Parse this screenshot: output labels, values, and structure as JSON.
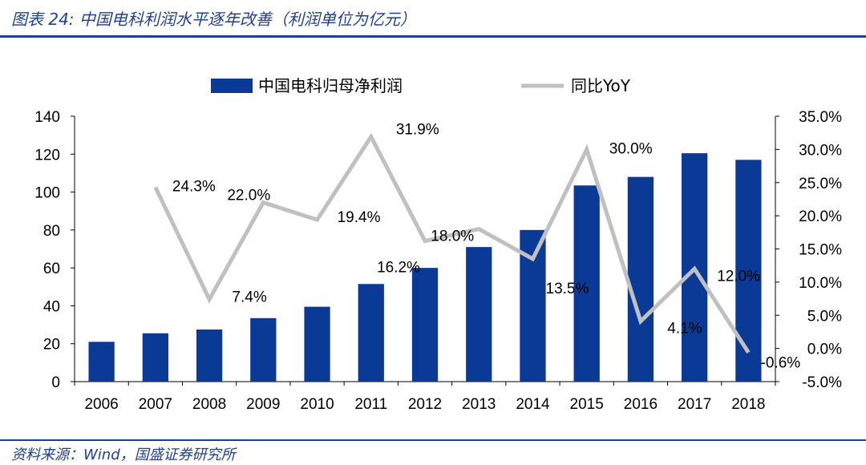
{
  "header": {
    "title": "图表 24: 中国电科利润水平逐年改善（利润单位为亿元）"
  },
  "footer": {
    "source": "资料来源：Wind，国盛证券研究所"
  },
  "colors": {
    "bar": "#0b3a96",
    "line": "#c0c0c2",
    "accent": "#1f3f8f"
  },
  "chart_data": {
    "type": "bar",
    "categories": [
      "2006",
      "2007",
      "2008",
      "2009",
      "2010",
      "2011",
      "2012",
      "2013",
      "2014",
      "2015",
      "2016",
      "2017",
      "2018"
    ],
    "series": [
      {
        "name": "中国电科归母净利润",
        "axis": "left",
        "type": "bar",
        "values": [
          21,
          25.5,
          27.5,
          33.5,
          39.5,
          51.5,
          60,
          71,
          80,
          103.5,
          108,
          120.5,
          117
        ]
      },
      {
        "name": "同比YoY",
        "axis": "right",
        "type": "line",
        "values": [
          null,
          24.3,
          7.4,
          22.0,
          19.4,
          31.9,
          16.2,
          18.0,
          13.5,
          30.0,
          4.1,
          12.0,
          -0.6
        ],
        "labels": [
          "",
          "24.3%",
          "7.4%",
          "22.0%",
          "19.4%",
          "31.9%",
          "16.2%",
          "18.0%",
          "13.5%",
          "30.0%",
          "4.1%",
          "12.0%",
          "-0.6%"
        ]
      }
    ],
    "y_left": {
      "ylim": [
        0,
        140
      ],
      "ticks": [
        "0",
        "20",
        "40",
        "60",
        "80",
        "100",
        "120",
        "140"
      ]
    },
    "y_right": {
      "ylim": [
        -5,
        35
      ],
      "ticks": [
        "-5.0%",
        "0.0%",
        "5.0%",
        "10.0%",
        "15.0%",
        "20.0%",
        "25.0%",
        "30.0%",
        "35.0%"
      ]
    },
    "legend": {
      "position": "top",
      "items": [
        "中国电科归母净利润",
        "同比YoY"
      ]
    },
    "grid": false
  }
}
